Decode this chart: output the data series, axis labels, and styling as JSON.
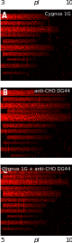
{
  "panels": [
    {
      "label": "A",
      "title": "Cygnus 1G",
      "x_left_label": "3",
      "x_right_label": "10"
    },
    {
      "label": "B",
      "title": "anti-CHO DG44",
      "x_left_label": "3",
      "x_right_label": "10"
    },
    {
      "label": "C",
      "title": "Cygnus 1G + anti-CHO DG44",
      "x_left_label": "5",
      "x_right_label": "10"
    }
  ],
  "figure_bg": "#ffffff",
  "top_left": "3",
  "top_mid": "pI",
  "top_right": "10",
  "bot_left": "5",
  "bot_mid": "pI",
  "bot_right": "10",
  "panel_label_color": "#ffffff",
  "panel_title_color": "#ffffff",
  "axis_text_color": "#000000"
}
